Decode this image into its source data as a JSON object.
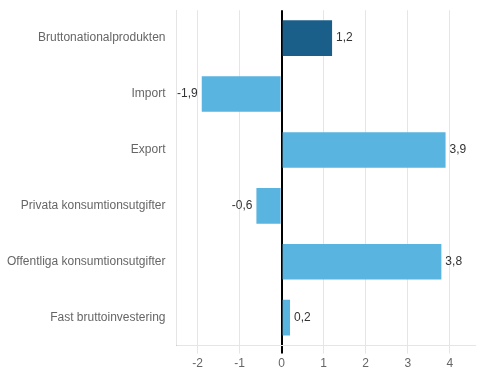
{
  "chart_data": {
    "type": "bar",
    "orientation": "horizontal",
    "categories": [
      "Bruttonationalprodukten",
      "Import",
      "Export",
      "Privata konsumtionsutgifter",
      "Offentliga konsumtionsutgifter",
      "Fast bruttoinvestering"
    ],
    "values": [
      1.2,
      -1.9,
      3.9,
      -0.6,
      3.8,
      0.2
    ],
    "value_labels": [
      "1,2",
      "-1,9",
      "3,9",
      "-0,6",
      "3,8",
      "0,2"
    ],
    "colors": [
      "#1a5e8a",
      "#5ab4e0",
      "#5ab4e0",
      "#5ab4e0",
      "#5ab4e0",
      "#5ab4e0"
    ],
    "xlim": [
      -2.5,
      4.6
    ],
    "xticks": [
      -2,
      -1,
      0,
      1,
      2,
      3,
      4
    ],
    "grid": true,
    "data_labels": true
  }
}
